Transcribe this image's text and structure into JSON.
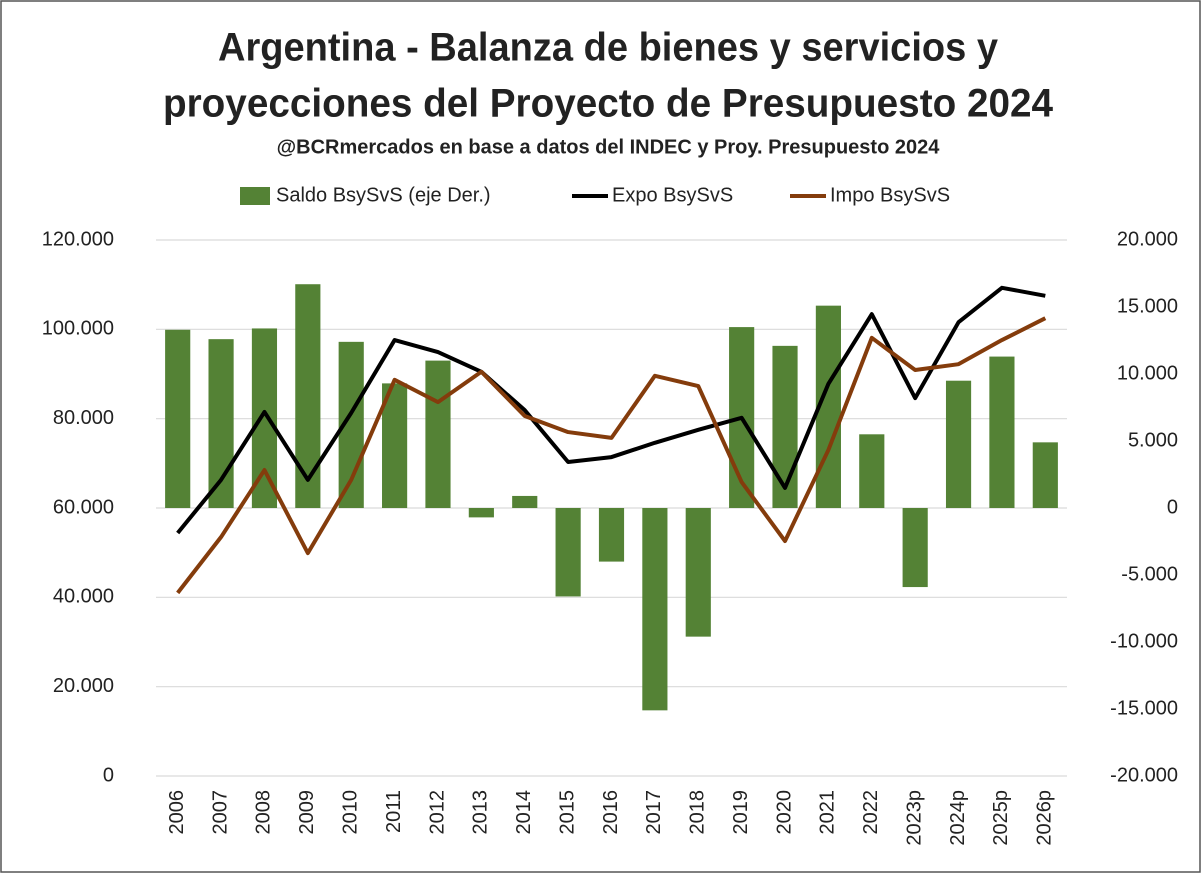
{
  "chart_data": {
    "type": "bar_line",
    "title": [
      "Argentina - Balanza de bienes y servicios y",
      "proyecciones del Proyecto de Presupuesto 2024"
    ],
    "subtitle": "@BCRmercados en base a datos del INDEC y Proy. Presupuesto 2024",
    "categories": [
      "2006",
      "2007",
      "2008",
      "2009",
      "2010",
      "2011",
      "2012",
      "2013",
      "2014",
      "2015",
      "2016",
      "2017",
      "2018",
      "2019",
      "2020",
      "2021",
      "2022",
      "2023p",
      "2024p",
      "2025p",
      "2026p"
    ],
    "series": [
      {
        "name": "Saldo BsySvS (eje Der.)",
        "type": "bar",
        "axis": "y2",
        "color": "#548235",
        "values": [
          13300,
          12600,
          13400,
          16700,
          12400,
          9300,
          11000,
          -700,
          900,
          -6600,
          -4000,
          -15100,
          -9600,
          13500,
          12100,
          15100,
          5500,
          -5900,
          9500,
          11300,
          4900
        ]
      },
      {
        "name": "Expo BsySvS",
        "type": "line",
        "color": "#000000",
        "values": [
          54400,
          66300,
          81500,
          66300,
          81300,
          97600,
          94900,
          90500,
          81900,
          70300,
          71400,
          74600,
          77500,
          80200,
          64500,
          87800,
          103400,
          84600,
          101600,
          109300,
          107500
        ]
      },
      {
        "name": "Impo BsySvS",
        "type": "line",
        "color": "#843c0c",
        "values": [
          41000,
          53500,
          68500,
          49900,
          66300,
          88700,
          83700,
          90500,
          80600,
          77000,
          75700,
          89600,
          87300,
          65800,
          52600,
          73000,
          98100,
          90900,
          92200,
          97600,
          102500
        ]
      }
    ],
    "ylim": [
      0,
      120000
    ],
    "yticks": [
      0,
      {
        "value": 20000,
        "label": "20.000"
      },
      {
        "value": 40000,
        "label": "40.000"
      },
      {
        "value": 60000,
        "label": "60.000"
      },
      {
        "value": 80000,
        "label": "80.000"
      },
      {
        "value": 100000,
        "label": "100.000"
      },
      {
        "value": 120000,
        "label": "120.000"
      }
    ],
    "y2lim": [
      -20000,
      20000
    ],
    "y2ticks": [
      {
        "value": -20000,
        "label": "-20.000"
      },
      {
        "value": -15000,
        "label": "-15.000"
      },
      {
        "value": -10000,
        "label": "-10.000"
      },
      {
        "value": -5000,
        "label": "-5.000"
      },
      0,
      {
        "value": 5000,
        "label": "5.000"
      },
      {
        "value": 10000,
        "label": "10.000"
      },
      {
        "value": 15000,
        "label": "15.000"
      },
      {
        "value": 20000,
        "label": "20.000"
      }
    ],
    "grid": true,
    "legend": "top"
  }
}
